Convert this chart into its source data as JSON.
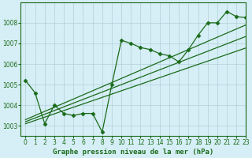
{
  "title": "Graphe pression niveau de la mer (hPa)",
  "bg_color": "#d6eef5",
  "grid_color": "#b0d0dc",
  "line_color": "#1a6b1a",
  "marker_color": "#1a6b1a",
  "xlim": [
    -0.5,
    23
  ],
  "ylim": [
    1002.5,
    1009.0
  ],
  "xticks": [
    0,
    1,
    2,
    3,
    4,
    5,
    6,
    7,
    8,
    9,
    10,
    11,
    12,
    13,
    14,
    15,
    16,
    17,
    18,
    19,
    20,
    21,
    22,
    23
  ],
  "yticks": [
    1003,
    1004,
    1005,
    1006,
    1007,
    1008
  ],
  "series_main": [
    1005.2,
    1004.6,
    1003.1,
    1004.0,
    1003.6,
    1003.5,
    1003.6,
    1003.6,
    1002.7,
    1005.0,
    1007.15,
    1007.0,
    1006.8,
    1006.7,
    1006.5,
    1006.4,
    1006.1,
    1006.7,
    1007.4,
    1008.0,
    1008.0,
    1008.55,
    1008.3,
    1008.25
  ],
  "series_trend1": [
    1003.1,
    1003.26,
    1003.42,
    1003.58,
    1003.74,
    1003.9,
    1004.06,
    1004.22,
    1004.38,
    1004.54,
    1004.7,
    1004.86,
    1005.02,
    1005.18,
    1005.34,
    1005.5,
    1005.66,
    1005.82,
    1005.98,
    1006.14,
    1006.3,
    1006.46,
    1006.62,
    1006.78
  ],
  "series_trend2": [
    1003.2,
    1003.38,
    1003.56,
    1003.74,
    1003.92,
    1004.1,
    1004.28,
    1004.46,
    1004.64,
    1004.82,
    1005.0,
    1005.18,
    1005.36,
    1005.54,
    1005.72,
    1005.9,
    1006.08,
    1006.26,
    1006.44,
    1006.62,
    1006.8,
    1006.98,
    1007.16,
    1007.34
  ],
  "series_trend3": [
    1003.3,
    1003.5,
    1003.7,
    1003.9,
    1004.1,
    1004.3,
    1004.5,
    1004.7,
    1004.9,
    1005.1,
    1005.3,
    1005.5,
    1005.7,
    1005.9,
    1006.1,
    1006.3,
    1006.5,
    1006.7,
    1006.9,
    1007.1,
    1007.3,
    1007.5,
    1007.7,
    1007.9
  ],
  "marker_size": 2.5,
  "linewidth": 0.9,
  "tick_fontsize": 5.5,
  "title_fontsize": 6.5
}
